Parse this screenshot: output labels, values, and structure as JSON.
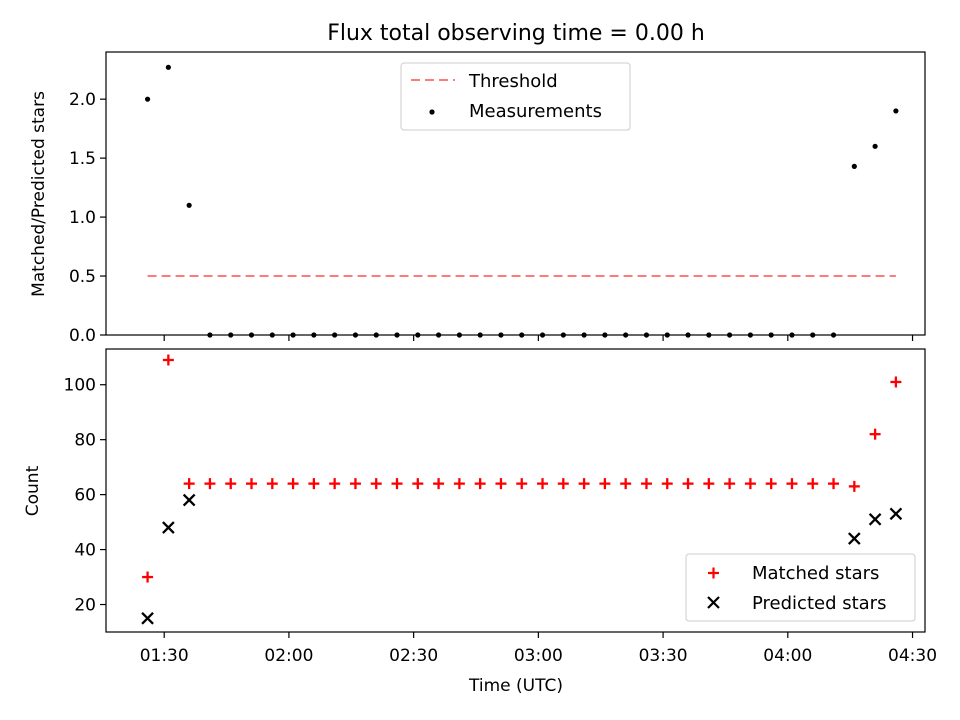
{
  "title": "Flux total observing time = 0.00 h",
  "xlabel": "Time (UTC)",
  "x_ticks": [
    "01:30",
    "02:00",
    "02:30",
    "03:00",
    "03:30",
    "04:00",
    "04:30"
  ],
  "chart_data": [
    {
      "type": "scatter",
      "panel": "top",
      "ylabel": "Matched/Predicted stars",
      "xlim": [
        "01:16",
        "04:33"
      ],
      "ylim": [
        0,
        2.4
      ],
      "y_ticks": [
        "0.0",
        "0.5",
        "1.0",
        "1.5",
        "2.0"
      ],
      "y_tick_values": [
        0,
        0.5,
        1.0,
        1.5,
        2.0
      ],
      "legend_position": "upper center",
      "threshold": {
        "name": "Threshold",
        "color": "#ff7b7b",
        "y": 0.5,
        "x_start": "01:26",
        "x_end": "04:26"
      },
      "series": [
        {
          "name": "Measurements",
          "color": "#000000",
          "x": [
            "01:26",
            "01:31",
            "01:36",
            "01:41",
            "01:46",
            "01:51",
            "01:56",
            "02:01",
            "02:06",
            "02:11",
            "02:16",
            "02:21",
            "02:26",
            "02:31",
            "02:36",
            "02:41",
            "02:46",
            "02:51",
            "02:56",
            "03:01",
            "03:06",
            "03:11",
            "03:16",
            "03:21",
            "03:26",
            "03:31",
            "03:36",
            "03:41",
            "03:46",
            "03:51",
            "03:56",
            "04:01",
            "04:06",
            "04:11",
            "04:16",
            "04:21",
            "04:26"
          ],
          "values": [
            2.0,
            2.27,
            1.1,
            0,
            0,
            0,
            0,
            0,
            0,
            0,
            0,
            0,
            0,
            0,
            0,
            0,
            0,
            0,
            0,
            0,
            0,
            0,
            0,
            0,
            0,
            0,
            0,
            0,
            0,
            0,
            0,
            0,
            0,
            0,
            1.43,
            1.6,
            1.9
          ]
        }
      ]
    },
    {
      "type": "scatter",
      "panel": "bottom",
      "ylabel": "Count",
      "xlim": [
        "01:16",
        "04:33"
      ],
      "ylim": [
        10,
        113
      ],
      "y_ticks": [
        "20",
        "40",
        "60",
        "80",
        "100"
      ],
      "y_tick_values": [
        20,
        40,
        60,
        80,
        100
      ],
      "legend_position": "lower right",
      "series": [
        {
          "name": "Matched stars",
          "marker": "plus",
          "color": "#ff0000",
          "x": [
            "01:26",
            "01:31",
            "01:36",
            "01:41",
            "01:46",
            "01:51",
            "01:56",
            "02:01",
            "02:06",
            "02:11",
            "02:16",
            "02:21",
            "02:26",
            "02:31",
            "02:36",
            "02:41",
            "02:46",
            "02:51",
            "02:56",
            "03:01",
            "03:06",
            "03:11",
            "03:16",
            "03:21",
            "03:26",
            "03:31",
            "03:36",
            "03:41",
            "03:46",
            "03:51",
            "03:56",
            "04:01",
            "04:06",
            "04:11",
            "04:16",
            "04:21",
            "04:26"
          ],
          "values": [
            30,
            109,
            64,
            64,
            64,
            64,
            64,
            64,
            64,
            64,
            64,
            64,
            64,
            64,
            64,
            64,
            64,
            64,
            64,
            64,
            64,
            64,
            64,
            64,
            64,
            64,
            64,
            64,
            64,
            64,
            64,
            64,
            64,
            64,
            63,
            82,
            101
          ]
        },
        {
          "name": "Predicted stars",
          "marker": "x",
          "color": "#000000",
          "x": [
            "01:26",
            "01:31",
            "01:36",
            "04:16",
            "04:21",
            "04:26"
          ],
          "values": [
            15,
            48,
            58,
            44,
            51,
            53
          ]
        }
      ]
    }
  ]
}
